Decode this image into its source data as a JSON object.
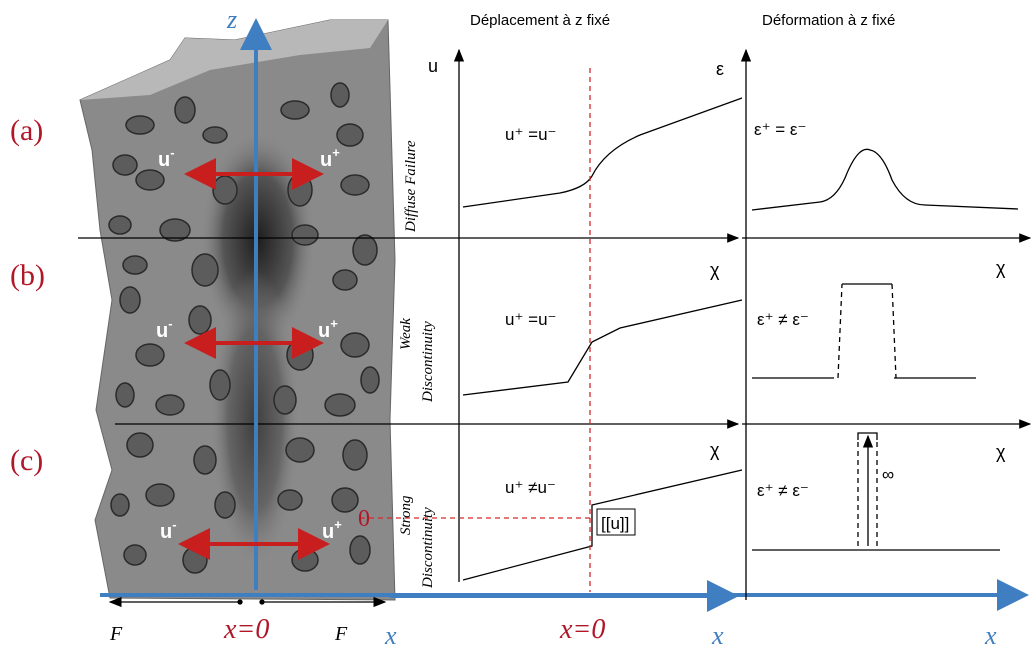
{
  "headers": {
    "displacement": "Déplacement à z fixé",
    "strain": "Déformation à z fixé"
  },
  "row_labels": {
    "a": "(a)",
    "b": "(b)",
    "c": "(c)"
  },
  "axes": {
    "z": "z",
    "x": "x",
    "x_zero": "x=0",
    "zero": "0",
    "F": "F"
  },
  "specimen_labels": {
    "u_minus": "u",
    "u_plus": "u",
    "sup_minus": "-",
    "sup_plus": "+"
  },
  "rows": [
    {
      "side_label": "Diffuse Failure",
      "side_lines": [
        "Diffuse Failure"
      ],
      "disp_axis": "u",
      "disp_eq": "u⁺ =u⁻",
      "strain_axis": "ε",
      "strain_eq": "ε⁺ = ε⁻"
    },
    {
      "side_label": "Weak Discontinuity",
      "side_lines": [
        "Weak",
        "Discontinuity"
      ],
      "disp_axis": "χ",
      "disp_eq": "u⁺ =u⁻",
      "strain_axis": "χ",
      "strain_eq": "ε⁺ ≠ ε⁻"
    },
    {
      "side_label": "Strong Discontinuity",
      "side_lines": [
        "Strong",
        "Discontinuity"
      ],
      "disp_axis": "χ",
      "disp_eq": "u⁺ ≠u⁻",
      "strain_axis": "χ",
      "strain_eq": "ε⁺ ≠ ε⁻",
      "jump_label": "[[u]]",
      "infinity": "∞"
    }
  ],
  "colors": {
    "accent_red": "#b0182a",
    "axis_blue": "#3f7fc1",
    "dashed_red": "#d62a2a",
    "rock": "#8a8a8a"
  }
}
